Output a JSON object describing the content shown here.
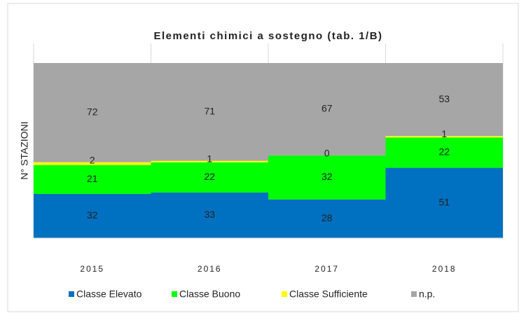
{
  "chart_data": {
    "type": "bar",
    "stacked": true,
    "title": "Elementi chimici a sostegno (tab. 1/B)",
    "y_label": "N° STAZIONI",
    "categories": [
      "2015",
      "2016",
      "2017",
      "2018"
    ],
    "series": [
      {
        "name": "Classe Elevato",
        "color": "#0070c0",
        "values": [
          32,
          33,
          28,
          51
        ]
      },
      {
        "name": "Classe Buono",
        "color": "#00ff00",
        "values": [
          21,
          22,
          32,
          22
        ]
      },
      {
        "name": "Classe Sufficiente",
        "color": "#ffff00",
        "values": [
          2,
          1,
          0,
          1
        ]
      },
      {
        "name": "n.p.",
        "color": "#a6a6a6",
        "values": [
          72,
          71,
          67,
          53
        ]
      }
    ],
    "ylim": [
      0,
      127
    ]
  }
}
